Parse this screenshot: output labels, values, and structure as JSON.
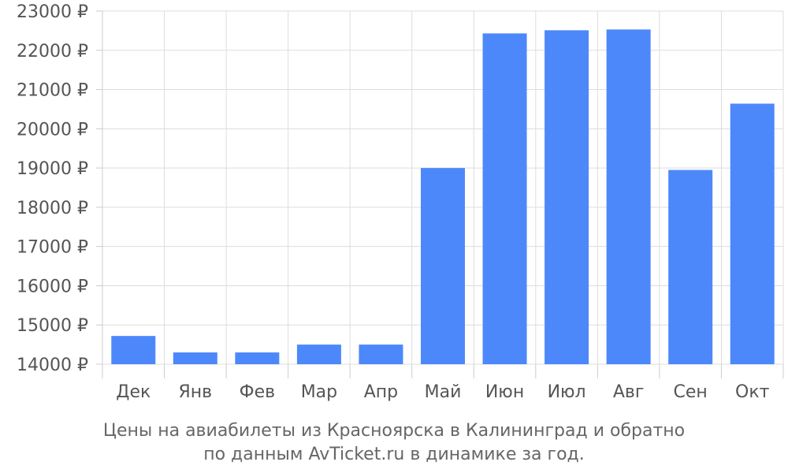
{
  "chart_data": {
    "type": "bar",
    "categories": [
      "Дек",
      "Янв",
      "Фев",
      "Мар",
      "Апр",
      "Май",
      "Июн",
      "Июл",
      "Авг",
      "Сен",
      "Окт"
    ],
    "values": [
      14720,
      14300,
      14300,
      14500,
      14500,
      19000,
      22430,
      22510,
      22530,
      18950,
      20640
    ],
    "yticks": [
      14000,
      15000,
      16000,
      17000,
      18000,
      19000,
      20000,
      21000,
      22000,
      23000
    ],
    "ytick_suffix": " ₽",
    "ylim": [
      14000,
      23000
    ],
    "grid": true,
    "bar_color": "#4d88fb",
    "title_line1": "Цены на авиабилеты из Красноярска в Калининград и обратно",
    "title_line2": "по данным AvTicket.ru в динамике за год."
  }
}
